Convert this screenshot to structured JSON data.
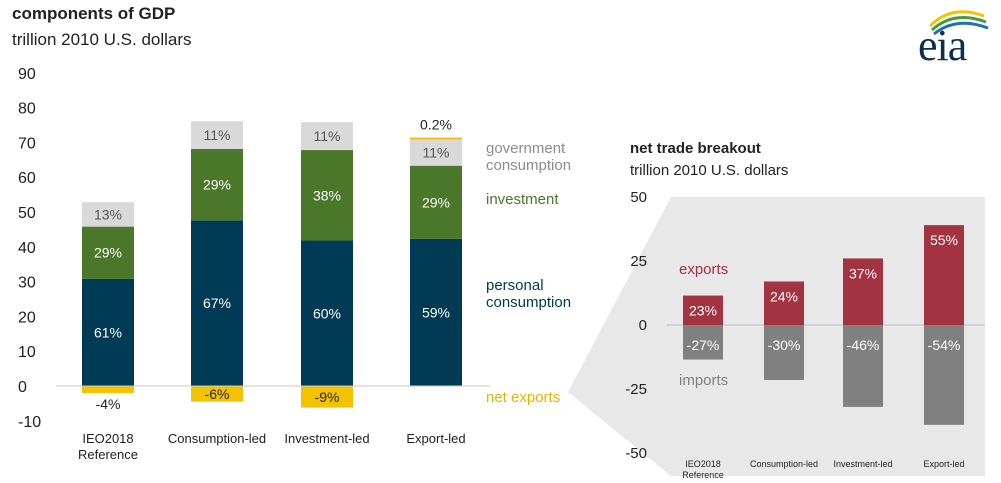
{
  "header": {
    "title": "components of GDP",
    "subtitle": "trillion 2010 U.S. dollars",
    "logo_text": "eia"
  },
  "colors": {
    "personal": "#003a54",
    "investment": "#4a7729",
    "government": "#d9d9d9",
    "net_exports": "#f4c300",
    "exports": "#a33340",
    "imports": "#808080",
    "inset_bg": "#e8e8e8"
  },
  "chart_data": [
    {
      "type": "bar",
      "stacked": true,
      "title": "components of GDP",
      "subtitle": "trillion 2010 U.S. dollars",
      "ylim": [
        -10,
        90
      ],
      "yticks": [
        90,
        80,
        70,
        60,
        50,
        40,
        30,
        20,
        10,
        0,
        -10
      ],
      "categories": [
        "IEO2018 Reference",
        "Consumption-led",
        "Investment-led",
        "Export-led"
      ],
      "category_lines": [
        [
          "IEO2018",
          "Reference"
        ],
        [
          "Consumption-led"
        ],
        [
          "Investment-led"
        ],
        [
          "Export-led"
        ]
      ],
      "series": [
        {
          "name": "personal consumption",
          "legend": [
            "personal",
            "consumption"
          ],
          "color_key": "personal",
          "values": [
            30.8,
            47.6,
            41.8,
            42.3
          ],
          "labels": [
            "61%",
            "67%",
            "60%",
            "59%"
          ]
        },
        {
          "name": "investment",
          "legend": [
            "investment"
          ],
          "color_key": "investment",
          "values": [
            15.0,
            20.5,
            26.0,
            21.0
          ],
          "labels": [
            "29%",
            "29%",
            "38%",
            "29%"
          ]
        },
        {
          "name": "government consumption",
          "legend": [
            "government",
            "consumption"
          ],
          "color_key": "government",
          "values": [
            7.0,
            8.0,
            8.0,
            7.5
          ],
          "labels": [
            "13%",
            "11%",
            "11%",
            "11%"
          ]
        },
        {
          "name": "net exports",
          "legend": [
            "net exports"
          ],
          "color_key": "net_exports",
          "values": [
            -2.0,
            -4.5,
            -6.2,
            0.6
          ],
          "labels": [
            "-4%",
            "-6%",
            "-9%",
            "0.2%"
          ]
        }
      ]
    },
    {
      "type": "bar",
      "title": "net trade breakout",
      "subtitle": "trillion 2010 U.S. dollars",
      "ylim": [
        -50,
        50
      ],
      "yticks": [
        50,
        25,
        0,
        -25,
        -50
      ],
      "categories": [
        "IEO2018 Reference",
        "Consumption-led",
        "Investment-led",
        "Export-led"
      ],
      "category_lines": [
        [
          "IEO2018",
          "Reference"
        ],
        [
          "Consumption-led"
        ],
        [
          "Investment-led"
        ],
        [
          "Export-led"
        ]
      ],
      "series": [
        {
          "name": "exports",
          "color_key": "exports",
          "values": [
            11.5,
            17,
            26,
            39
          ],
          "labels": [
            "23%",
            "24%",
            "37%",
            "55%"
          ]
        },
        {
          "name": "imports",
          "color_key": "imports",
          "values": [
            -13.5,
            -21.5,
            -32,
            -39
          ],
          "labels": [
            "-27%",
            "-30%",
            "-46%",
            "-54%"
          ]
        }
      ]
    }
  ]
}
